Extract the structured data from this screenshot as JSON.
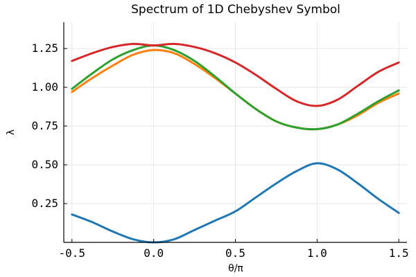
{
  "chart_data": {
    "type": "line",
    "title": "Spectrum of 1D Chebyshev Symbol",
    "xlabel": "θ/π",
    "ylabel": "λ",
    "xlim": [
      -0.55,
      1.55
    ],
    "ylim": [
      0.0,
      1.42
    ],
    "xticks": [
      -0.5,
      0.0,
      0.5,
      1.0,
      1.5
    ],
    "xtick_labels": [
      "-0.5",
      "0.0",
      "0.5",
      "1.0",
      "1.5"
    ],
    "yticks": [
      0.25,
      0.5,
      0.75,
      1.0,
      1.25
    ],
    "ytick_labels": [
      "0.25",
      "0.50",
      "0.75",
      "1.00",
      "1.25"
    ],
    "grid": true,
    "legend": false,
    "x": [
      -0.5,
      -0.375,
      -0.25,
      -0.125,
      0.0,
      0.125,
      0.25,
      0.375,
      0.5,
      0.625,
      0.75,
      0.875,
      1.0,
      1.125,
      1.25,
      1.375,
      1.5
    ],
    "series": [
      {
        "color": "#1f77b4",
        "values": [
          0.18,
          0.13,
          0.07,
          0.02,
          0.0,
          0.02,
          0.08,
          0.14,
          0.2,
          0.29,
          0.38,
          0.46,
          0.51,
          0.47,
          0.38,
          0.28,
          0.19
        ]
      },
      {
        "color": "#ff7f0e",
        "values": [
          0.97,
          1.06,
          1.14,
          1.21,
          1.24,
          1.22,
          1.15,
          1.06,
          0.96,
          0.86,
          0.78,
          0.74,
          0.73,
          0.76,
          0.82,
          0.9,
          0.96
        ]
      },
      {
        "color": "#2ca02c",
        "values": [
          0.99,
          1.09,
          1.18,
          1.24,
          1.27,
          1.24,
          1.17,
          1.07,
          0.96,
          0.86,
          0.78,
          0.74,
          0.73,
          0.76,
          0.83,
          0.91,
          0.98
        ]
      },
      {
        "color": "#d62728",
        "values": [
          1.17,
          1.22,
          1.26,
          1.28,
          1.27,
          1.28,
          1.26,
          1.22,
          1.16,
          1.08,
          0.99,
          0.91,
          0.88,
          0.92,
          1.01,
          1.1,
          1.16
        ]
      }
    ]
  }
}
